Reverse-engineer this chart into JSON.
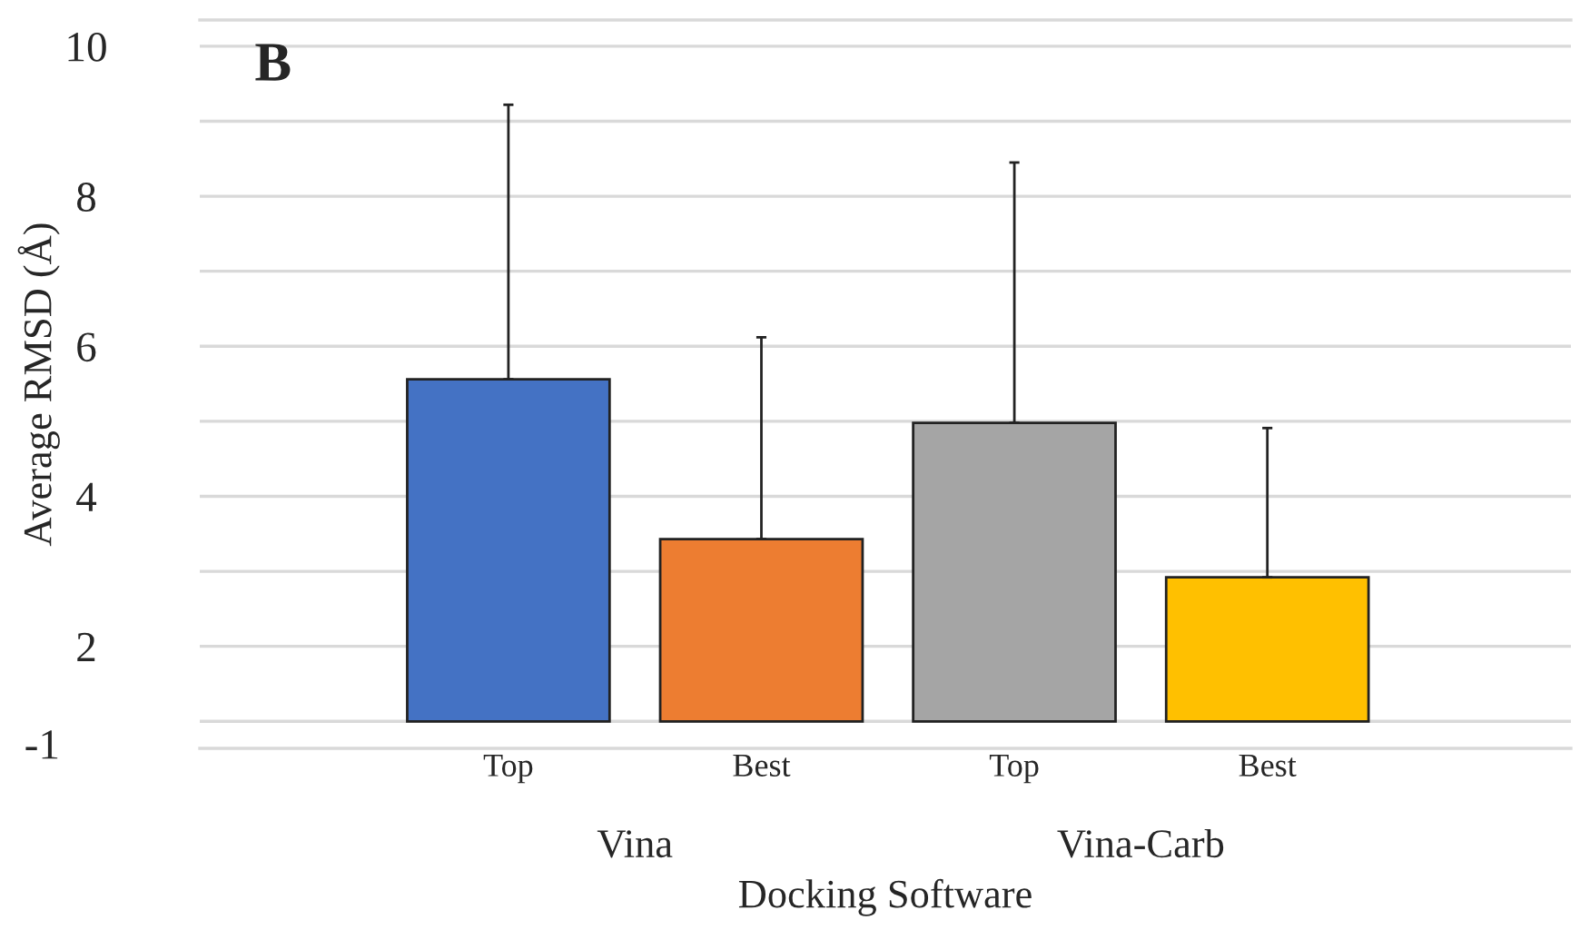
{
  "chart_data": {
    "type": "bar",
    "categories": [
      "Top",
      "Best",
      "Top",
      "Best"
    ],
    "values": [
      4.56,
      2.43,
      3.98,
      1.92
    ],
    "base": [
      1,
      1,
      1,
      1
    ],
    "colors": [
      "#4472c4",
      "#ed7d31",
      "#a5a5a5",
      "#ffc000"
    ],
    "errors": [
      [
        5.56,
        9.22
      ],
      [
        3.43,
        6.12
      ],
      [
        4.98,
        8.45
      ],
      [
        2.92,
        4.91
      ]
    ],
    "xlabel": "Docking Software",
    "ylabel": "Average RMSD (Å)",
    "annotations": [
      "B",
      "Vina",
      "Vina-Carb",
      "-1"
    ],
    "ylim": [
      0.64,
      10.35
    ],
    "yticks": [
      {
        "value": 1,
        "label": null
      },
      2,
      {
        "value": 3,
        "label": null
      },
      4,
      {
        "value": 5,
        "label": null
      },
      6,
      {
        "value": 7,
        "label": null
      },
      8,
      {
        "value": 9,
        "label": null
      },
      10
    ],
    "grid": "y",
    "legend": false
  }
}
